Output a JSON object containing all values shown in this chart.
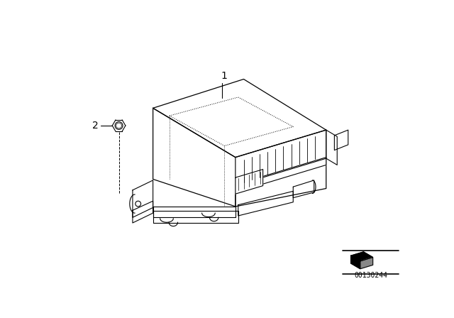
{
  "background_color": "#ffffff",
  "line_color": "#000000",
  "fig_width": 6.4,
  "fig_height": 4.48,
  "dpi": 100,
  "part_number": "00130244",
  "label_1": "1",
  "label_2": "2"
}
